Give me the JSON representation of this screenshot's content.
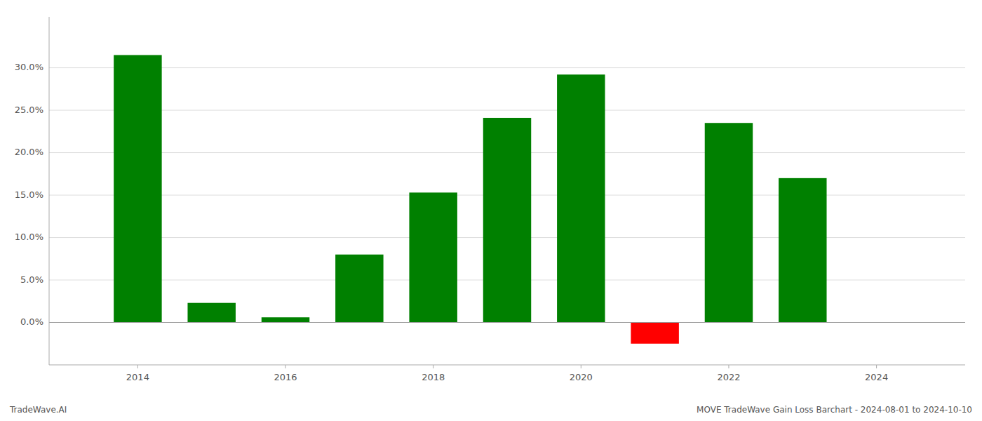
{
  "chart_data": {
    "type": "bar",
    "x": [
      2014,
      2015,
      2016,
      2017,
      2018,
      2019,
      2020,
      2021,
      2022,
      2023
    ],
    "values": [
      0.315,
      0.023,
      0.006,
      0.08,
      0.153,
      0.241,
      0.292,
      -0.025,
      0.235,
      0.17
    ],
    "colors": [
      "#008000",
      "#008000",
      "#008000",
      "#008000",
      "#008000",
      "#008000",
      "#008000",
      "#ff0000",
      "#008000",
      "#008000"
    ],
    "xlim": [
      2012.8,
      2025.2
    ],
    "xticks": [
      2014,
      2016,
      2018,
      2020,
      2022,
      2024
    ],
    "ylim": [
      -0.05,
      0.36
    ],
    "yticks": [
      {
        "value": 0.0,
        "label": "0.0%"
      },
      {
        "value": 0.05,
        "label": "5.0%"
      },
      {
        "value": 0.1,
        "label": "10.0%"
      },
      {
        "value": 0.15,
        "label": "15.0%"
      },
      {
        "value": 0.2,
        "label": "20.0%"
      },
      {
        "value": 0.25,
        "label": "25.0%"
      },
      {
        "value": 0.3,
        "label": "30.0%"
      }
    ],
    "grid": true,
    "annotations": [
      "TradeWave.AI",
      "MOVE TradeWave Gain Loss Barchart - 2024-08-01 to 2024-10-10"
    ]
  }
}
